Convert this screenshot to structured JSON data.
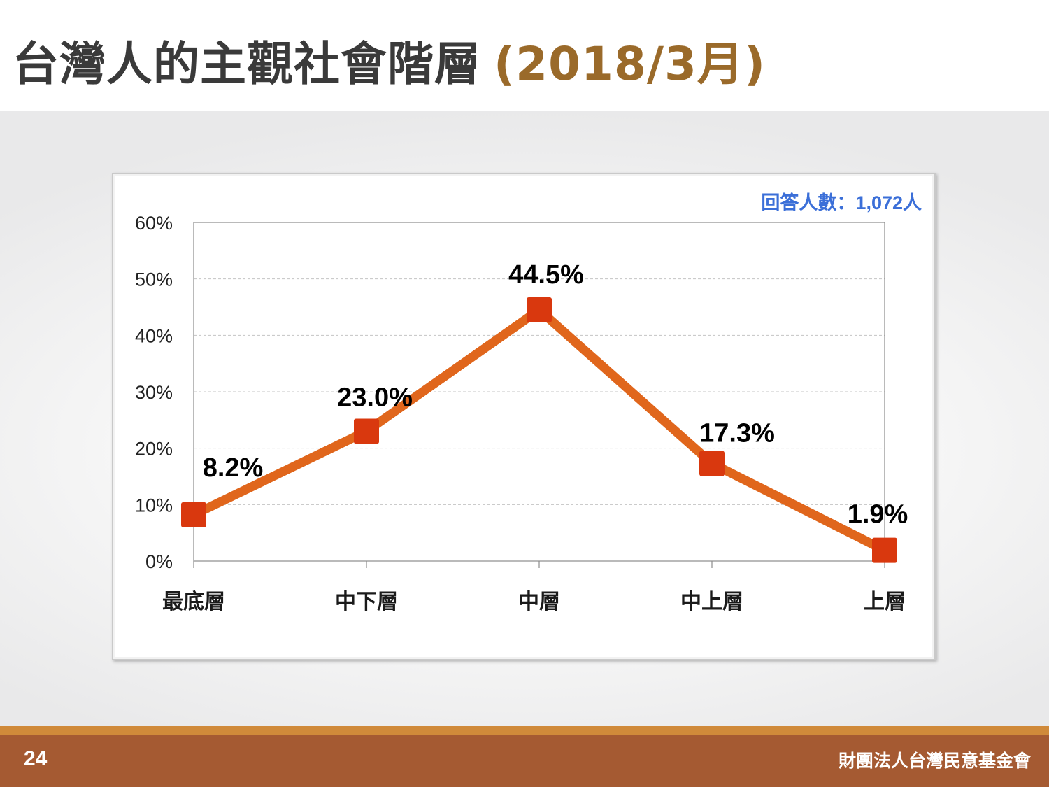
{
  "header": {
    "title": "台灣人的主觀社會階層",
    "title_paren": "(2018/3月)"
  },
  "chart_data": {
    "type": "line",
    "categories": [
      "最底層",
      "中下層",
      "中層",
      "中上層",
      "上層"
    ],
    "values": [
      8.2,
      23.0,
      44.5,
      17.3,
      1.9
    ],
    "data_labels": [
      "8.2%",
      "23.0%",
      "44.5%",
      "17.3%",
      "1.9%"
    ],
    "y_ticks": [
      "0%",
      "10%",
      "20%",
      "30%",
      "40%",
      "50%",
      "60%"
    ],
    "ylim": [
      0,
      60
    ],
    "grid": true,
    "note": "回答人數：1,072人",
    "line_color": "#e0661c",
    "marker_color": "#d9380e"
  },
  "footer": {
    "page_number": "24",
    "organization": "財團法人台灣民意基金會"
  }
}
